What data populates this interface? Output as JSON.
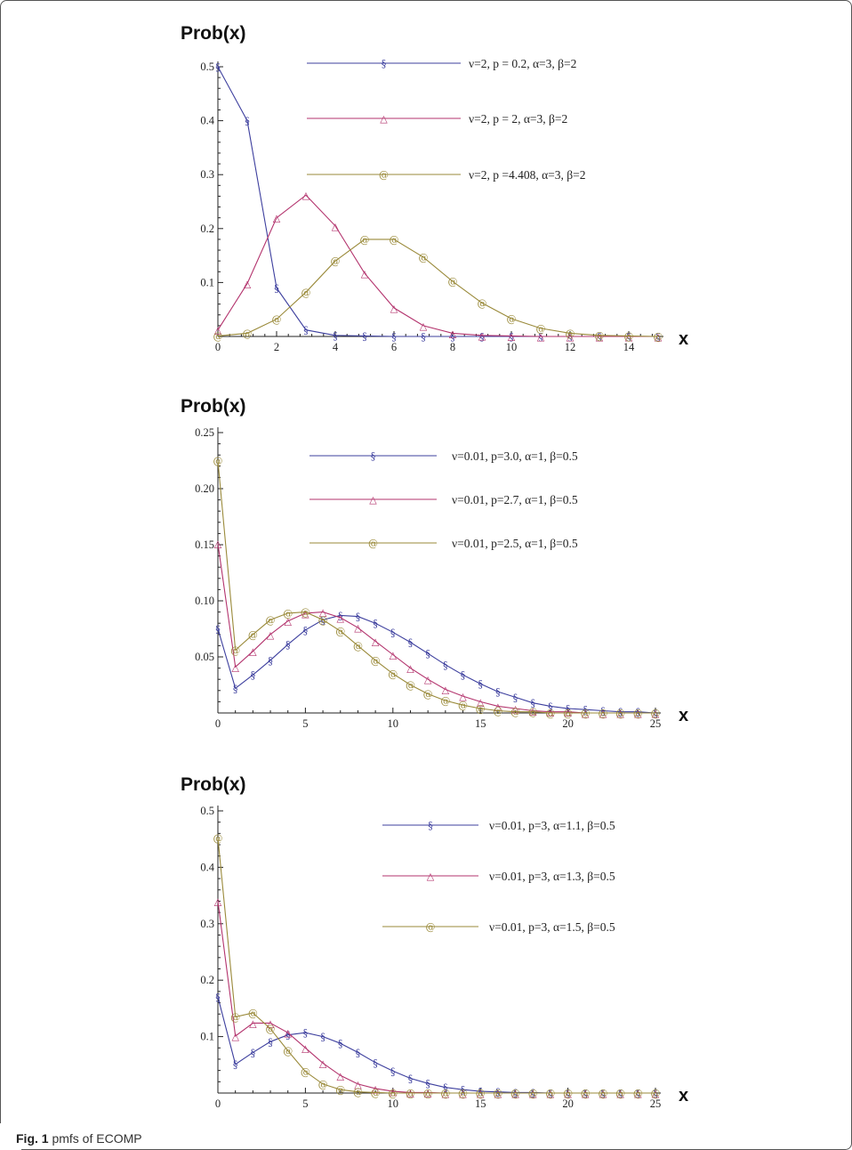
{
  "caption": {
    "label": "Fig. 1",
    "text": "pmfs of ECOMP"
  },
  "colors": {
    "blue": "#3d3f9e",
    "magenta": "#b3336d",
    "olive": "#9a8a3a"
  },
  "chart_data": [
    {
      "type": "line",
      "ylabel": "Prob(x)",
      "xlabel": "x",
      "xlim": [
        0,
        15
      ],
      "ylim": [
        0,
        0.5
      ],
      "xticks": [
        0,
        2,
        4,
        6,
        8,
        10,
        12,
        14
      ],
      "xtick_labels": [
        "0",
        "2",
        "4",
        "6",
        "8",
        "10",
        "12",
        "14"
      ],
      "yticks": [
        0.1,
        0.2,
        0.3,
        0.4,
        0.5
      ],
      "ytick_labels": [
        "0.1",
        "0.2",
        "0.3",
        "0.4",
        "0.5"
      ],
      "x": [
        0,
        1,
        2,
        3,
        4,
        5,
        6,
        7,
        8,
        9,
        10,
        11,
        12,
        13,
        14,
        15
      ],
      "series": [
        {
          "name": "ν=2, p = 0.2, α=3, β=2",
          "marker": "§",
          "color": "#3d3f9e",
          "values": [
            0.5,
            0.4,
            0.09,
            0.012,
            0.002,
            0.001,
            0,
            0,
            0,
            0,
            0,
            0,
            0,
            0,
            0,
            0
          ]
        },
        {
          "name": "ν=2, p = 2, α=3, β=2",
          "marker": "△",
          "color": "#b3336d",
          "values": [
            0.012,
            0.098,
            0.22,
            0.262,
            0.205,
            0.117,
            0.053,
            0.02,
            0.006,
            0.002,
            0.001,
            0,
            0,
            0,
            0,
            0
          ]
        },
        {
          "name": "ν=2, p =4.408, α=3, β=2",
          "marker": "@",
          "color": "#9a8a3a",
          "values": [
            0.001,
            0.006,
            0.032,
            0.082,
            0.14,
            0.18,
            0.18,
            0.147,
            0.102,
            0.062,
            0.033,
            0.015,
            0.006,
            0.002,
            0.001,
            0
          ]
        }
      ]
    },
    {
      "type": "line",
      "ylabel": "Prob(x)",
      "xlabel": "x",
      "xlim": [
        0,
        25
      ],
      "ylim": [
        0,
        0.25
      ],
      "xticks": [
        0,
        5,
        10,
        15,
        20,
        25
      ],
      "xtick_labels": [
        "0",
        "5",
        "10",
        "15",
        "20",
        "25"
      ],
      "yticks": [
        0.05,
        0.1,
        0.15,
        0.2,
        0.25
      ],
      "ytick_labels": [
        "0.05",
        "0.10",
        "0.15",
        "0.20",
        "0.25"
      ],
      "x": [
        0,
        1,
        2,
        3,
        4,
        5,
        6,
        7,
        8,
        9,
        10,
        11,
        12,
        13,
        14,
        15,
        16,
        17,
        18,
        19,
        20,
        21,
        22,
        23,
        24,
        25
      ],
      "series": [
        {
          "name": "ν=0.01, p=3.0, α=1, β=0.5",
          "marker": "§",
          "color": "#3d3f9e",
          "values": [
            0.075,
            0.022,
            0.034,
            0.047,
            0.061,
            0.074,
            0.083,
            0.087,
            0.086,
            0.08,
            0.072,
            0.063,
            0.053,
            0.043,
            0.034,
            0.026,
            0.019,
            0.014,
            0.009,
            0.006,
            0.004,
            0.003,
            0.002,
            0.001,
            0.001,
            0
          ]
        },
        {
          "name": "ν=0.01, p=2.7, α=1, β=0.5",
          "marker": "△",
          "color": "#b3336d",
          "values": [
            0.151,
            0.041,
            0.055,
            0.07,
            0.082,
            0.089,
            0.09,
            0.085,
            0.076,
            0.064,
            0.052,
            0.04,
            0.03,
            0.021,
            0.015,
            0.01,
            0.006,
            0.004,
            0.002,
            0.001,
            0.001,
            0,
            0,
            0,
            0,
            0
          ]
        },
        {
          "name": "ν=0.01, p=2.5, α=1, β=0.5",
          "marker": "@",
          "color": "#9a8a3a",
          "values": [
            0.225,
            0.056,
            0.07,
            0.083,
            0.089,
            0.09,
            0.083,
            0.073,
            0.06,
            0.047,
            0.035,
            0.025,
            0.017,
            0.011,
            0.007,
            0.004,
            0.002,
            0.001,
            0.001,
            0,
            0,
            0,
            0,
            0,
            0,
            0
          ]
        }
      ]
    },
    {
      "type": "line",
      "ylabel": "Prob(x)",
      "xlabel": "x",
      "xlim": [
        0,
        25
      ],
      "ylim": [
        0,
        0.5
      ],
      "xticks": [
        0,
        5,
        10,
        15,
        20,
        25
      ],
      "xtick_labels": [
        "0",
        "5",
        "10",
        "15",
        "20",
        "25"
      ],
      "yticks": [
        0.1,
        0.2,
        0.3,
        0.4,
        0.5
      ],
      "ytick_labels": [
        "0.1",
        "0.2",
        "0.3",
        "0.4",
        "0.5"
      ],
      "x": [
        0,
        1,
        2,
        3,
        4,
        5,
        6,
        7,
        8,
        9,
        10,
        11,
        12,
        13,
        14,
        15,
        16,
        17,
        18,
        19,
        20,
        21,
        22,
        23,
        24,
        25
      ],
      "series": [
        {
          "name": "ν=0.01, p=3, α=1.1, β=0.5",
          "marker": "§",
          "color": "#3d3f9e",
          "values": [
            0.17,
            0.051,
            0.072,
            0.091,
            0.103,
            0.107,
            0.1,
            0.088,
            0.072,
            0.054,
            0.039,
            0.026,
            0.017,
            0.01,
            0.006,
            0.003,
            0.002,
            0.001,
            0.001,
            0,
            0,
            0,
            0,
            0,
            0,
            0
          ]
        },
        {
          "name": "ν=0.01, p=3, α=1.3, β=0.5",
          "marker": "△",
          "color": "#b3336d",
          "values": [
            0.34,
            0.101,
            0.124,
            0.124,
            0.107,
            0.08,
            0.053,
            0.031,
            0.016,
            0.008,
            0.003,
            0.001,
            0.001,
            0,
            0,
            0,
            0,
            0,
            0,
            0,
            0,
            0,
            0,
            0,
            0,
            0
          ]
        },
        {
          "name": "ν=0.01, p=3, α=1.5, β=0.5",
          "marker": "@",
          "color": "#9a8a3a",
          "values": [
            0.452,
            0.135,
            0.142,
            0.114,
            0.075,
            0.038,
            0.016,
            0.006,
            0.002,
            0.001,
            0,
            0,
            0,
            0,
            0,
            0,
            0,
            0,
            0,
            0,
            0,
            0,
            0,
            0,
            0,
            0
          ]
        }
      ]
    }
  ]
}
